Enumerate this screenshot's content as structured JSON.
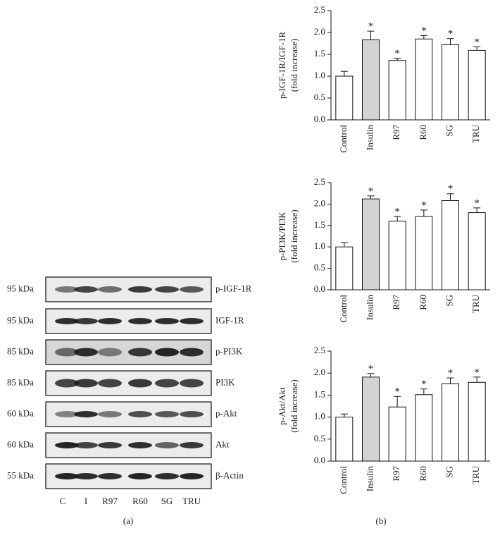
{
  "chart_data": [
    {
      "type": "bar",
      "ylabel": [
        "p-IGF-1R/IGF-1R",
        "(fold increase)"
      ],
      "categories": [
        "Control",
        "Insulin",
        "R97",
        "R60",
        "SG",
        "TRU"
      ],
      "values": [
        1.0,
        1.83,
        1.36,
        1.85,
        1.72,
        1.59
      ],
      "errors": [
        0.11,
        0.2,
        0.05,
        0.08,
        0.14,
        0.08
      ],
      "annotations": [
        null,
        "*",
        "*",
        "*",
        "*",
        "*"
      ],
      "colors": [
        "#ffffff",
        "#d3d3d3",
        "#ffffff",
        "#ffffff",
        "#ffffff",
        "#ffffff"
      ],
      "ylim": [
        0,
        2.5
      ],
      "yticks": [
        {
          "value": 0,
          "label": "0.0"
        },
        0.5,
        {
          "value": 1,
          "label": "1.0"
        },
        1.5,
        {
          "value": 2,
          "label": "2.0"
        },
        2.5
      ]
    },
    {
      "type": "bar",
      "ylabel": [
        "p-PI3K/PI3K",
        "(fold increase)"
      ],
      "categories": [
        "Control",
        "Insulin",
        "R97",
        "R60",
        "SG",
        "TRU"
      ],
      "values": [
        1.0,
        2.12,
        1.6,
        1.71,
        2.08,
        1.8
      ],
      "errors": [
        0.1,
        0.07,
        0.11,
        0.15,
        0.16,
        0.11
      ],
      "annotations": [
        null,
        "*",
        "*",
        "*",
        "*",
        "*"
      ],
      "colors": [
        "#ffffff",
        "#d3d3d3",
        "#ffffff",
        "#ffffff",
        "#ffffff",
        "#ffffff"
      ],
      "ylim": [
        0,
        2.5
      ],
      "yticks": [
        {
          "value": 0,
          "label": "0.0"
        },
        0.5,
        {
          "value": 1,
          "label": "1.0"
        },
        1.5,
        {
          "value": 2,
          "label": "2.0"
        },
        2.5
      ]
    },
    {
      "type": "bar",
      "ylabel": [
        "p-Akt/Akt",
        "(fold increase)"
      ],
      "categories": [
        "Control",
        "Insulin",
        "R97",
        "R60",
        "SG",
        "TRU"
      ],
      "values": [
        1.0,
        1.91,
        1.23,
        1.51,
        1.76,
        1.79
      ],
      "errors": [
        0.07,
        0.08,
        0.24,
        0.13,
        0.13,
        0.12
      ],
      "annotations": [
        null,
        "*",
        "*",
        "*",
        "*",
        "*"
      ],
      "colors": [
        "#ffffff",
        "#d3d3d3",
        "#ffffff",
        "#ffffff",
        "#ffffff",
        "#ffffff"
      ],
      "ylim": [
        0,
        2.5
      ],
      "yticks": [
        {
          "value": 0,
          "label": "0.0"
        },
        0.5,
        {
          "value": 1,
          "label": "1.0"
        },
        1.5,
        {
          "value": 2,
          "label": "2.0"
        },
        2.5
      ]
    }
  ],
  "blot": {
    "rows": [
      {
        "size": "95 kDa",
        "label": "p-IGF-1R"
      },
      {
        "size": "95 kDa",
        "label": "IGF-1R"
      },
      {
        "size": "85 kDa",
        "label": "p-PI3K"
      },
      {
        "size": "85 kDa",
        "label": "PI3K"
      },
      {
        "size": "60 kDa",
        "label": "p-Akt"
      },
      {
        "size": "60 kDa",
        "label": "Akt"
      },
      {
        "size": "55 kDa",
        "label": "β-Actin"
      }
    ],
    "lanes": [
      "C",
      "I",
      "R97",
      "R60",
      "SG",
      "TRU"
    ]
  },
  "panel_labels": [
    "(a)",
    "(b)"
  ]
}
